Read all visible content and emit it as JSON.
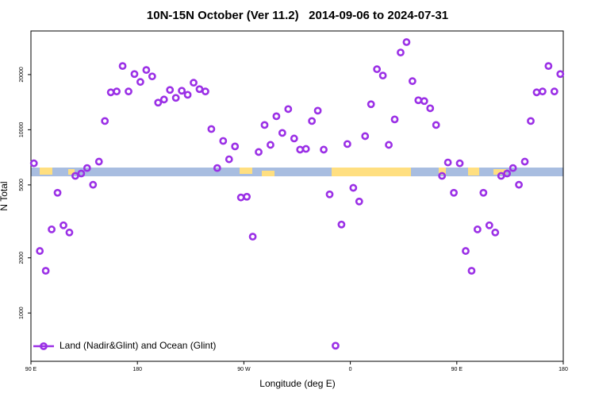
{
  "chart_data": {
    "type": "scatter",
    "title": "10N-15N October (Ver 11.2)   2014-09-06 to 2024-07-31",
    "xlabel": "Longitude (deg E)",
    "ylabel": "N Total",
    "xlim": [
      90,
      540
    ],
    "xticks": [
      {
        "value": 90,
        "label": "90 E"
      },
      {
        "value": 180,
        "label": "180"
      },
      {
        "value": 270,
        "label": "90 W"
      },
      {
        "value": 360,
        "label": "0"
      },
      {
        "value": 450,
        "label": "90 E"
      },
      {
        "value": 540,
        "label": "180"
      }
    ],
    "ylim": [
      545,
      34600
    ],
    "yscale": "log",
    "yticks": [
      1000,
      2000,
      5000,
      10000,
      20000
    ],
    "legend": "lower left",
    "series": [
      {
        "name": "Land (Nadir&Glint) and Ocean (Glint)",
        "color": "#9b30e6",
        "x": [
          92.5,
          97.5,
          102.5,
          107.5,
          112.5,
          117.5,
          122.5,
          127.5,
          132.5,
          137.5,
          142.5,
          147.5,
          152.5,
          157.5,
          162.5,
          167.5,
          172.5,
          177.5,
          182.5,
          187.5,
          192.5,
          197.5,
          202.5,
          207.5,
          212.5,
          217.5,
          222.5,
          227.5,
          232.5,
          237.5,
          242.5,
          247.5,
          252.5,
          257.5,
          262.5,
          267.5,
          272.5,
          277.5,
          282.5,
          287.5,
          292.5,
          297.5,
          302.5,
          307.5,
          312.5,
          317.5,
          322.5,
          327.5,
          332.5,
          337.5,
          342.5,
          347.5,
          352.5,
          357.5,
          362.5,
          367.5,
          372.5,
          377.5,
          382.5,
          387.5,
          392.5,
          397.5,
          402.5,
          407.5,
          412.5,
          417.5,
          422.5,
          427.5,
          432.5,
          437.5,
          442.5,
          447.5,
          452.5,
          457.5,
          462.5,
          467.5,
          472.5,
          477.5,
          482.5,
          487.5,
          492.5,
          497.5,
          502.5,
          507.5,
          512.5,
          517.5,
          522.5,
          527.5,
          532.5,
          537.5
        ],
        "values": [
          6560,
          2180,
          1700,
          2860,
          4530,
          3010,
          2750,
          5600,
          5770,
          6180,
          5010,
          6700,
          11160,
          16000,
          16180,
          22280,
          16180,
          20140,
          18240,
          21190,
          19550,
          14060,
          14620,
          16490,
          14930,
          16330,
          15520,
          18060,
          16660,
          16180,
          10090,
          6180,
          8690,
          6900,
          8110,
          4270,
          4310,
          2610,
          7560,
          10620,
          8270,
          11850,
          9610,
          12970,
          8960,
          7790,
          7860,
          11160,
          12710,
          7790,
          4440,
          663,
          3040,
          8360,
          4820,
          4060,
          9230,
          13780,
          21400,
          19760,
          8270,
          11390,
          26400,
          30080,
          18420,
          14490,
          14340,
          13100,
          10620,
          5600,
          6630,
          4530,
          6560,
          2180,
          1700,
          2860,
          4530,
          3010,
          2750,
          5600,
          5770,
          6180,
          5010,
          6700,
          11160,
          16000,
          16180,
          22280,
          16180,
          20140
        ]
      }
    ]
  }
}
